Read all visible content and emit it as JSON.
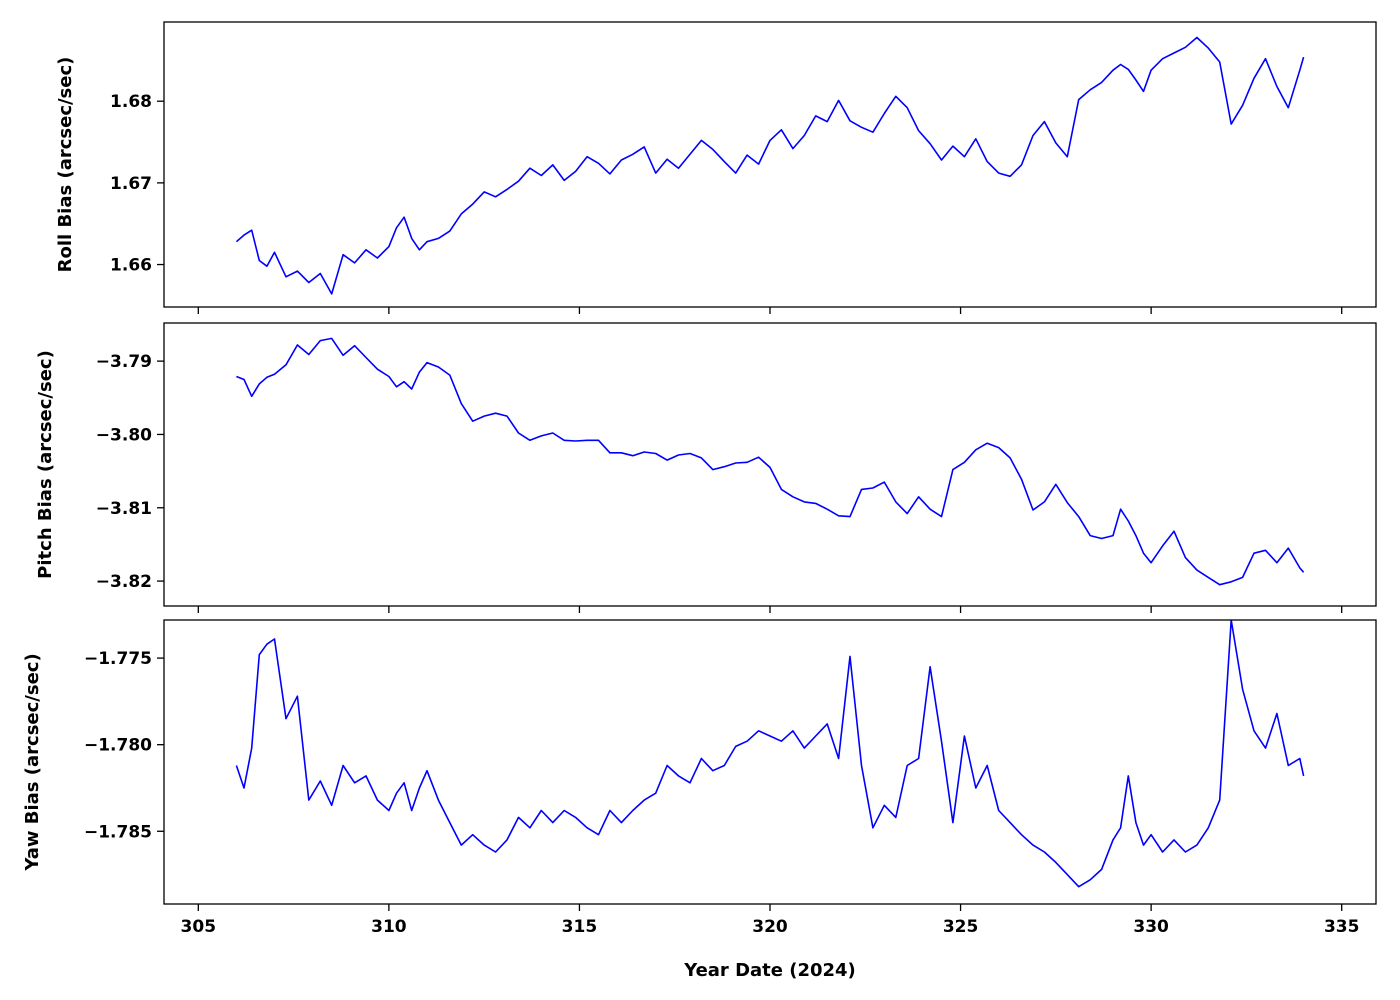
{
  "chart_data": [
    {
      "type": "line",
      "ylabel": "Roll Bias (arcsec/sec)",
      "xlabel": "",
      "xlim": [
        304.1,
        335.9
      ],
      "ylim": [
        1.6548,
        1.6897
      ],
      "xticks": [
        305,
        310,
        315,
        320,
        325,
        330,
        335
      ],
      "yticks": [
        1.66,
        1.67,
        1.68
      ],
      "ytick_labels": [
        "1.66",
        "1.67",
        "1.68"
      ],
      "show_xtick_labels": false,
      "series": [
        {
          "color": "#0000ff",
          "x": [
            306.0,
            306.2,
            306.4,
            306.6,
            306.8,
            307.0,
            307.3,
            307.6,
            307.9,
            308.2,
            308.5,
            308.8,
            309.1,
            309.4,
            309.7,
            310.0,
            310.2,
            310.4,
            310.6,
            310.8,
            311.0,
            311.3,
            311.6,
            311.9,
            312.2,
            312.5,
            312.8,
            313.1,
            313.4,
            313.7,
            314.0,
            314.3,
            314.6,
            314.9,
            315.2,
            315.5,
            315.8,
            316.1,
            316.4,
            316.7,
            317.0,
            317.3,
            317.6,
            317.9,
            318.2,
            318.5,
            318.8,
            319.1,
            319.4,
            319.7,
            320.0,
            320.3,
            320.6,
            320.9,
            321.2,
            321.5,
            321.8,
            322.1,
            322.4,
            322.7,
            323.0,
            323.3,
            323.6,
            323.9,
            324.2,
            324.5,
            324.8,
            325.1,
            325.4,
            325.7,
            326.0,
            326.3,
            326.6,
            326.9,
            327.2,
            327.5,
            327.8,
            328.1,
            328.4,
            328.7,
            329.0,
            329.2,
            329.4,
            329.6,
            329.8,
            330.0,
            330.3,
            330.6,
            330.9,
            331.2,
            331.5,
            331.8,
            332.1,
            332.4,
            332.7,
            333.0,
            333.3,
            333.6,
            333.9,
            334.0
          ],
          "y": [
            1.6628,
            1.6636,
            1.6642,
            1.6605,
            1.6598,
            1.6615,
            1.6585,
            1.6592,
            1.6578,
            1.6589,
            1.6564,
            1.6612,
            1.6602,
            1.6618,
            1.6608,
            1.6622,
            1.6645,
            1.6658,
            1.6632,
            1.6618,
            1.6628,
            1.6632,
            1.6641,
            1.6662,
            1.6674,
            1.6689,
            1.6683,
            1.6692,
            1.6702,
            1.6718,
            1.6709,
            1.6722,
            1.6703,
            1.6714,
            1.6732,
            1.6724,
            1.6711,
            1.6728,
            1.6735,
            1.6744,
            1.6712,
            1.6729,
            1.6718,
            1.6735,
            1.6752,
            1.6741,
            1.6726,
            1.6712,
            1.6734,
            1.6723,
            1.6752,
            1.6765,
            1.6742,
            1.6758,
            1.6782,
            1.6775,
            1.6801,
            1.6776,
            1.6768,
            1.6762,
            1.6785,
            1.6806,
            1.6792,
            1.6764,
            1.6748,
            1.6728,
            1.6745,
            1.6732,
            1.6754,
            1.6726,
            1.6712,
            1.6708,
            1.6722,
            1.6758,
            1.6775,
            1.6749,
            1.6732,
            1.6802,
            1.6814,
            1.6823,
            1.6838,
            1.6845,
            1.6839,
            1.6826,
            1.6812,
            1.6838,
            1.6852,
            1.6859,
            1.6866,
            1.6878,
            1.6865,
            1.6848,
            1.6772,
            1.6795,
            1.6828,
            1.6852,
            1.6818,
            1.6792,
            1.6838,
            1.6854
          ]
        }
      ]
    },
    {
      "type": "line",
      "ylabel": "Pitch Bias (arcsec/sec)",
      "xlabel": "",
      "xlim": [
        304.1,
        335.9
      ],
      "ylim": [
        -3.8234,
        -3.7848
      ],
      "xticks": [
        305,
        310,
        315,
        320,
        325,
        330,
        335
      ],
      "yticks": [
        -3.82,
        -3.81,
        -3.8,
        -3.79
      ],
      "ytick_labels": [
        "−3.82",
        "−3.81",
        "−3.80",
        "−3.79"
      ],
      "show_xtick_labels": false,
      "series": [
        {
          "color": "#0000ff",
          "x": [
            306.0,
            306.2,
            306.4,
            306.6,
            306.8,
            307.0,
            307.3,
            307.6,
            307.9,
            308.2,
            308.5,
            308.8,
            309.1,
            309.4,
            309.7,
            310.0,
            310.2,
            310.4,
            310.6,
            310.8,
            311.0,
            311.3,
            311.6,
            311.9,
            312.2,
            312.5,
            312.8,
            313.1,
            313.4,
            313.7,
            314.0,
            314.3,
            314.6,
            314.9,
            315.2,
            315.5,
            315.8,
            316.1,
            316.4,
            316.7,
            317.0,
            317.3,
            317.6,
            317.9,
            318.2,
            318.5,
            318.8,
            319.1,
            319.4,
            319.7,
            320.0,
            320.3,
            320.6,
            320.9,
            321.2,
            321.5,
            321.8,
            322.1,
            322.4,
            322.7,
            323.0,
            323.3,
            323.6,
            323.9,
            324.2,
            324.5,
            324.8,
            325.1,
            325.4,
            325.7,
            326.0,
            326.3,
            326.6,
            326.9,
            327.2,
            327.5,
            327.8,
            328.1,
            328.4,
            328.7,
            329.0,
            329.2,
            329.4,
            329.6,
            329.8,
            330.0,
            330.3,
            330.6,
            330.9,
            331.2,
            331.5,
            331.8,
            332.1,
            332.4,
            332.7,
            333.0,
            333.3,
            333.6,
            333.9,
            334.0
          ],
          "y": [
            -3.7921,
            -3.7925,
            -3.7948,
            -3.7931,
            -3.7922,
            -3.7918,
            -3.7905,
            -3.7878,
            -3.7891,
            -3.7872,
            -3.7869,
            -3.7892,
            -3.7879,
            -3.7895,
            -3.7911,
            -3.7921,
            -3.7935,
            -3.7928,
            -3.7938,
            -3.7915,
            -3.7902,
            -3.7908,
            -3.7919,
            -3.7958,
            -3.7982,
            -3.7975,
            -3.7971,
            -3.7975,
            -3.7998,
            -3.8008,
            -3.8002,
            -3.7998,
            -3.8008,
            -3.8009,
            -3.8008,
            -3.8008,
            -3.8025,
            -3.8025,
            -3.8029,
            -3.8024,
            -3.8026,
            -3.8035,
            -3.8028,
            -3.8026,
            -3.8032,
            -3.8048,
            -3.8044,
            -3.8039,
            -3.8038,
            -3.8031,
            -3.8045,
            -3.8075,
            -3.8085,
            -3.8092,
            -3.8094,
            -3.8102,
            -3.8111,
            -3.8112,
            -3.8075,
            -3.8073,
            -3.8065,
            -3.8092,
            -3.8108,
            -3.8085,
            -3.8102,
            -3.8112,
            -3.8048,
            -3.8038,
            -3.8021,
            -3.8012,
            -3.8018,
            -3.8032,
            -3.8061,
            -3.8103,
            -3.8092,
            -3.8068,
            -3.8093,
            -3.8112,
            -3.8138,
            -3.8142,
            -3.8138,
            -3.8102,
            -3.8118,
            -3.8138,
            -3.8162,
            -3.8175,
            -3.8152,
            -3.8132,
            -3.8168,
            -3.8185,
            -3.8195,
            -3.8205,
            -3.8201,
            -3.8195,
            -3.8162,
            -3.8158,
            -3.8175,
            -3.8155,
            -3.8182,
            -3.8188
          ]
        }
      ]
    },
    {
      "type": "line",
      "ylabel": "Yaw Bias (arcsec/sec)",
      "xlabel": "Year Date (2024)",
      "xlim": [
        304.1,
        335.9
      ],
      "ylim": [
        -1.7892,
        -1.7728
      ],
      "xticks": [
        305,
        310,
        315,
        320,
        325,
        330,
        335
      ],
      "xtick_labels": [
        "305",
        "310",
        "315",
        "320",
        "325",
        "330",
        "335"
      ],
      "yticks": [
        -1.785,
        -1.78,
        -1.775
      ],
      "ytick_labels": [
        "−1.785",
        "−1.780",
        "−1.775"
      ],
      "show_xtick_labels": true,
      "series": [
        {
          "color": "#0000ff",
          "x": [
            306.0,
            306.2,
            306.4,
            306.6,
            306.8,
            307.0,
            307.3,
            307.6,
            307.9,
            308.2,
            308.5,
            308.8,
            309.1,
            309.4,
            309.7,
            310.0,
            310.2,
            310.4,
            310.6,
            310.8,
            311.0,
            311.3,
            311.6,
            311.9,
            312.2,
            312.5,
            312.8,
            313.1,
            313.4,
            313.7,
            314.0,
            314.3,
            314.6,
            314.9,
            315.2,
            315.5,
            315.8,
            316.1,
            316.4,
            316.7,
            317.0,
            317.3,
            317.6,
            317.9,
            318.2,
            318.5,
            318.8,
            319.1,
            319.4,
            319.7,
            320.0,
            320.3,
            320.6,
            320.9,
            321.2,
            321.5,
            321.8,
            322.1,
            322.4,
            322.7,
            323.0,
            323.3,
            323.6,
            323.9,
            324.2,
            324.5,
            324.8,
            325.1,
            325.4,
            325.7,
            326.0,
            326.3,
            326.6,
            326.9,
            327.2,
            327.5,
            327.8,
            328.1,
            328.4,
            328.7,
            329.0,
            329.2,
            329.4,
            329.6,
            329.8,
            330.0,
            330.3,
            330.6,
            330.9,
            331.2,
            331.5,
            331.8,
            332.1,
            332.4,
            332.7,
            333.0,
            333.3,
            333.6,
            333.9,
            334.0
          ],
          "y": [
            -1.7812,
            -1.7825,
            -1.7802,
            -1.7748,
            -1.7742,
            -1.7739,
            -1.7785,
            -1.7772,
            -1.7832,
            -1.7821,
            -1.7835,
            -1.7812,
            -1.7822,
            -1.7818,
            -1.7832,
            -1.7838,
            -1.7828,
            -1.7822,
            -1.7838,
            -1.7825,
            -1.7815,
            -1.7832,
            -1.7845,
            -1.7858,
            -1.7852,
            -1.7858,
            -1.7862,
            -1.7855,
            -1.7842,
            -1.7848,
            -1.7838,
            -1.7845,
            -1.7838,
            -1.7842,
            -1.7848,
            -1.7852,
            -1.7838,
            -1.7845,
            -1.7838,
            -1.7832,
            -1.7828,
            -1.7812,
            -1.7818,
            -1.7822,
            -1.7808,
            -1.7815,
            -1.7812,
            -1.7801,
            -1.7798,
            -1.7792,
            -1.7795,
            -1.7798,
            -1.7792,
            -1.7802,
            -1.7795,
            -1.7788,
            -1.7808,
            -1.7749,
            -1.7812,
            -1.7848,
            -1.7835,
            -1.7842,
            -1.7812,
            -1.7808,
            -1.7755,
            -1.7798,
            -1.7845,
            -1.7795,
            -1.7825,
            -1.7812,
            -1.7838,
            -1.7845,
            -1.7852,
            -1.7858,
            -1.7862,
            -1.7868,
            -1.7875,
            -1.7882,
            -1.7878,
            -1.7872,
            -1.7855,
            -1.7848,
            -1.7818,
            -1.7845,
            -1.7858,
            -1.7852,
            -1.7862,
            -1.7855,
            -1.7862,
            -1.7858,
            -1.7848,
            -1.7832,
            -1.7728,
            -1.7768,
            -1.7792,
            -1.7802,
            -1.7782,
            -1.7812,
            -1.7808,
            -1.7818
          ]
        }
      ]
    }
  ]
}
